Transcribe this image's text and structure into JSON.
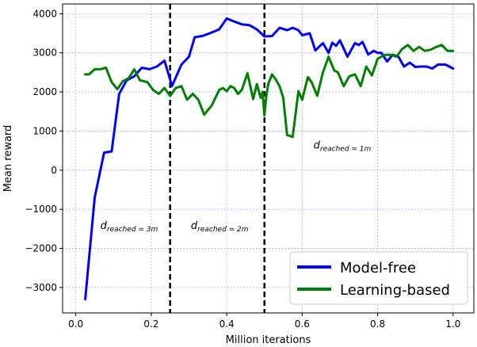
{
  "chart_data": {
    "type": "line",
    "xlabel": "Million iterations",
    "ylabel": "Mean reward",
    "xlim": [
      -0.035,
      1.055
    ],
    "ylim": [
      -3650,
      4250
    ],
    "xticks": [
      0.0,
      0.2,
      0.4,
      0.6,
      0.8,
      1.0
    ],
    "xtick_labels": [
      "0.0",
      "0.2",
      "0.4",
      "0.6",
      "0.8",
      "1.0"
    ],
    "yticks": [
      -3000,
      -2000,
      -1000,
      0,
      1000,
      2000,
      3000,
      4000
    ],
    "ytick_labels": [
      "−3000",
      "−2000",
      "−1000",
      "0",
      "1000",
      "2000",
      "3000",
      "4000"
    ],
    "grid": true,
    "legend_position": "bottom-right",
    "vlines": [
      0.25,
      0.5
    ],
    "annotations": [
      {
        "base": "d",
        "sub": "reached = 3m",
        "x": 0.065,
        "y": -1500
      },
      {
        "base": "d",
        "sub": "reached = 2m",
        "x": 0.305,
        "y": -1500
      },
      {
        "base": "d",
        "sub": "reached = 1m",
        "x": 0.63,
        "y": 550
      }
    ],
    "series": [
      {
        "name": "Model-free",
        "color": "#0000ff",
        "x": [
          0.025,
          0.05,
          0.075,
          0.095,
          0.115,
          0.135,
          0.155,
          0.175,
          0.195,
          0.215,
          0.235,
          0.255,
          0.28,
          0.3,
          0.315,
          0.335,
          0.355,
          0.38,
          0.4,
          0.42,
          0.44,
          0.46,
          0.48,
          0.5,
          0.52,
          0.54,
          0.56,
          0.575,
          0.59,
          0.6,
          0.62,
          0.635,
          0.655,
          0.67,
          0.68,
          0.69,
          0.7,
          0.72,
          0.74,
          0.75,
          0.76,
          0.775,
          0.79,
          0.8,
          0.81,
          0.825,
          0.84,
          0.855,
          0.87,
          0.885,
          0.9,
          0.915,
          0.93,
          0.945,
          0.96,
          0.98,
          1.0
        ],
        "y": [
          -3300,
          -700,
          450,
          480,
          1950,
          2300,
          2400,
          2620,
          2580,
          2650,
          2800,
          2150,
          2700,
          2900,
          3400,
          3430,
          3500,
          3600,
          3880,
          3800,
          3730,
          3710,
          3600,
          3420,
          3430,
          3640,
          3580,
          3640,
          3580,
          3450,
          3500,
          3060,
          3250,
          3000,
          3260,
          3180,
          3320,
          2900,
          3250,
          3200,
          3280,
          2960,
          3050,
          3000,
          3000,
          2780,
          2950,
          2900,
          2650,
          2750,
          2640,
          2650,
          2650,
          2600,
          2700,
          2700,
          2600
        ]
      },
      {
        "name": "Learning-based",
        "color": "#008000",
        "x": [
          0.025,
          0.035,
          0.05,
          0.065,
          0.08,
          0.095,
          0.11,
          0.125,
          0.14,
          0.155,
          0.17,
          0.19,
          0.205,
          0.22,
          0.235,
          0.25,
          0.265,
          0.28,
          0.295,
          0.31,
          0.325,
          0.34,
          0.36,
          0.38,
          0.39,
          0.4,
          0.41,
          0.42,
          0.43,
          0.44,
          0.455,
          0.47,
          0.48,
          0.49,
          0.495,
          0.5,
          0.505,
          0.51,
          0.52,
          0.53,
          0.54,
          0.55,
          0.56,
          0.575,
          0.59,
          0.6,
          0.615,
          0.625,
          0.64,
          0.655,
          0.67,
          0.685,
          0.695,
          0.71,
          0.725,
          0.74,
          0.755,
          0.77,
          0.785,
          0.8,
          0.81,
          0.82,
          0.835,
          0.85,
          0.865,
          0.88,
          0.895,
          0.91,
          0.925,
          0.94,
          0.955,
          0.97,
          0.985,
          1.0
        ],
        "y": [
          2450,
          2450,
          2580,
          2580,
          2620,
          2250,
          2070,
          2280,
          2350,
          2580,
          2300,
          2250,
          2050,
          1950,
          2100,
          1900,
          2100,
          2150,
          1800,
          1950,
          1800,
          1420,
          1650,
          2050,
          2100,
          2020,
          2150,
          2100,
          1950,
          2050,
          2480,
          1820,
          2200,
          1850,
          2000,
          1400,
          1900,
          2200,
          2450,
          2320,
          2150,
          1850,
          900,
          850,
          2020,
          1800,
          2380,
          2250,
          1900,
          2500,
          2900,
          2550,
          2500,
          2150,
          2400,
          2450,
          2150,
          2650,
          2420,
          2850,
          2900,
          2950,
          2950,
          2900,
          3100,
          3200,
          3050,
          3150,
          3050,
          3080,
          3150,
          3200,
          3050,
          3050
        ]
      }
    ]
  }
}
